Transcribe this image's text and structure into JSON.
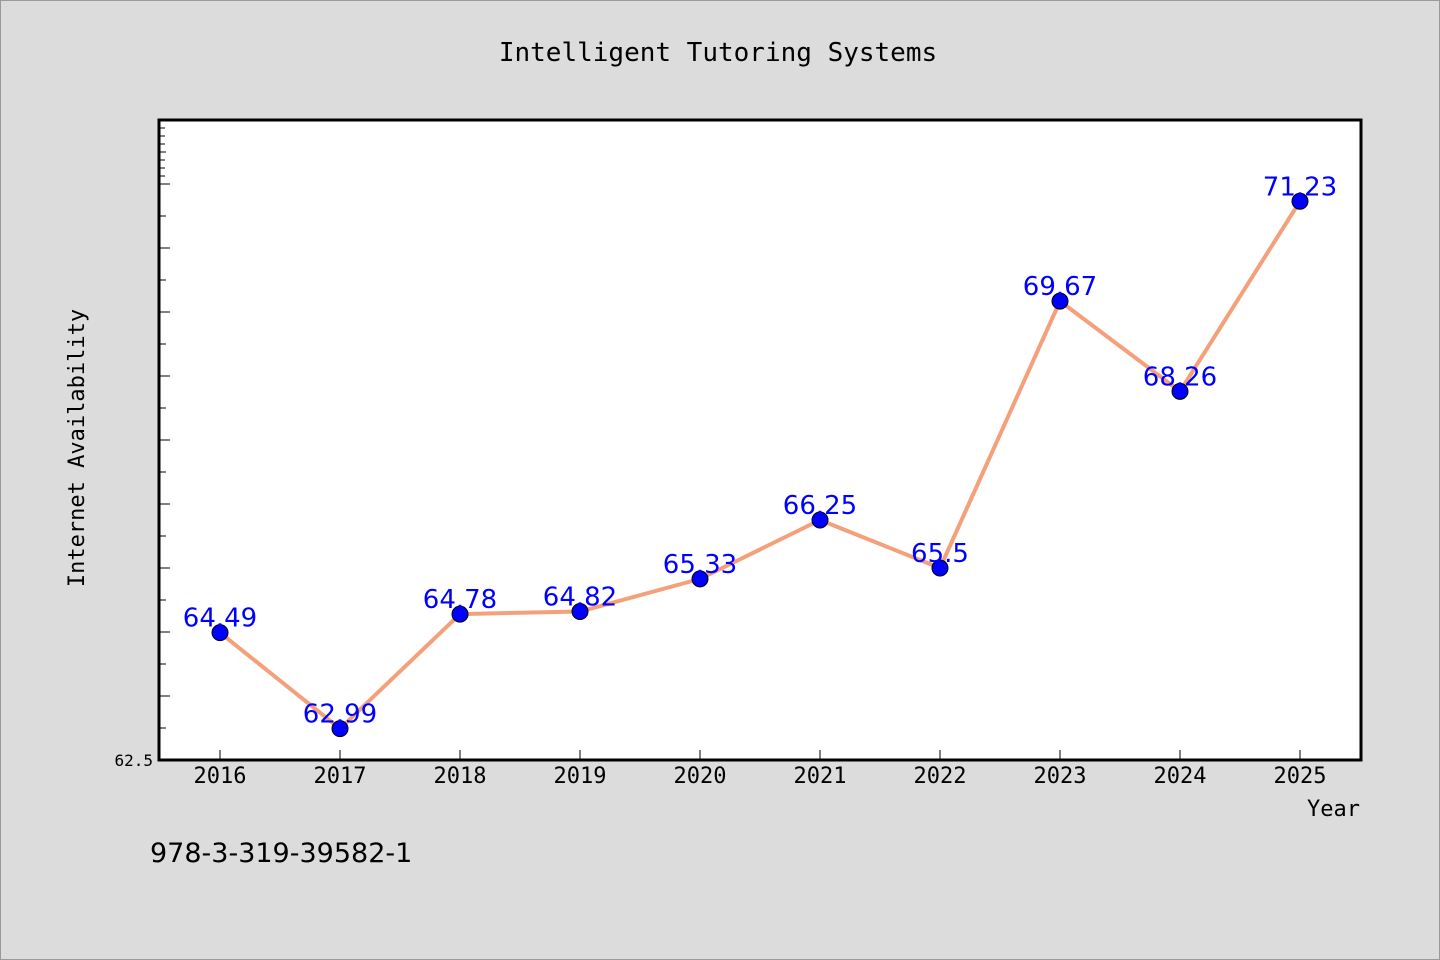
{
  "chart_data": {
    "type": "line",
    "title": "Intelligent Tutoring Systems",
    "xlabel": "Year",
    "ylabel": "Internet Availability",
    "categories": [
      "2016",
      "2017",
      "2018",
      "2019",
      "2020",
      "2021",
      "2022",
      "2023",
      "2024",
      "2025"
    ],
    "series": [
      {
        "values": [
          64.49,
          62.99,
          64.78,
          64.82,
          65.33,
          66.25,
          65.5,
          69.67,
          68.26,
          71.23
        ],
        "data_labels": [
          "64.49",
          "62.99",
          "64.78",
          "64.82",
          "65.33",
          "66.25",
          "65.5",
          "69.67",
          "68.26",
          "71.23"
        ]
      }
    ],
    "ylim": [
      62.5,
      72.5
    ],
    "y_tick_labels": [
      "62.5"
    ],
    "grid": false,
    "line_color": "#f4a07a",
    "marker_color": "#0000ff",
    "label_color": "#0000ff"
  },
  "footer": {
    "isbn": "978-3-319-39582-1"
  }
}
